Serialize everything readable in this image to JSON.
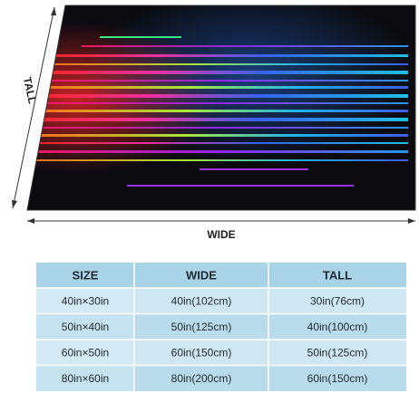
{
  "dimensions": {
    "tall": "TALL",
    "wide": "WIDE"
  },
  "table": {
    "header": [
      "SIZE",
      "WIDE",
      "TALL"
    ],
    "rows": [
      [
        "40in×30in",
        "40in(102cm)",
        "30in(76cm)"
      ],
      [
        "50in×40in",
        "50in(125cm)",
        "40in(100cm)"
      ],
      [
        "60in×50in",
        "60in(150cm)",
        "50in(125cm)"
      ],
      [
        "80in×60in",
        "80in(200cm)",
        "60in(150cm)"
      ]
    ]
  }
}
